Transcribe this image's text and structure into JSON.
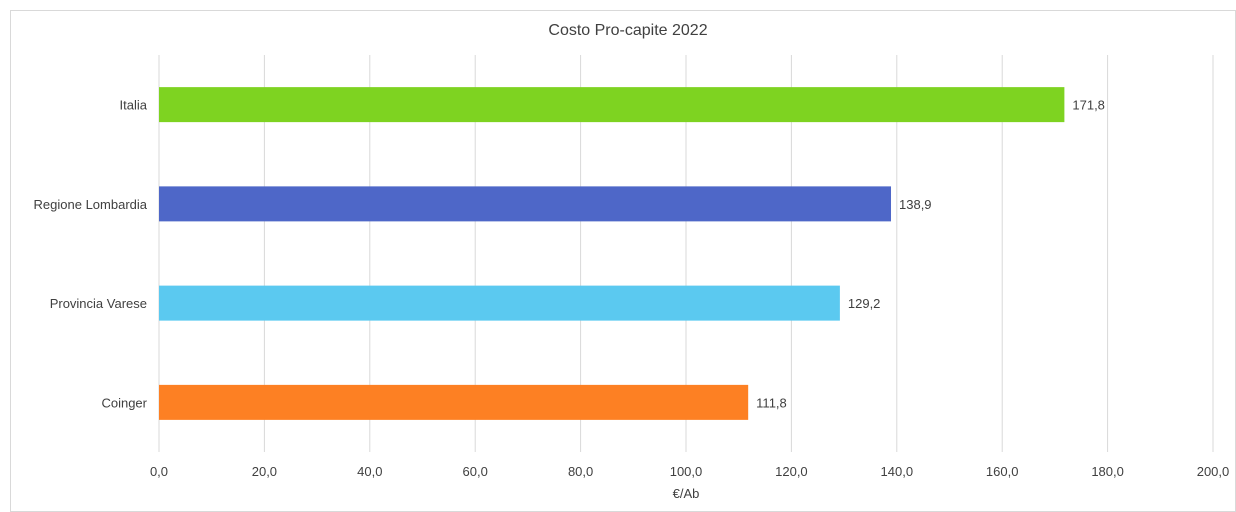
{
  "chart_data": {
    "type": "bar",
    "orientation": "horizontal",
    "title": "Costo Pro-capite 2022",
    "xlabel": "€/Ab",
    "ylabel": "",
    "xlim": [
      0,
      200
    ],
    "x_ticks": [
      "0,0",
      "20,0",
      "40,0",
      "60,0",
      "80,0",
      "100,0",
      "120,0",
      "140,0",
      "160,0",
      "180,0",
      "200,0"
    ],
    "grid": "vertical",
    "legend": "none",
    "categories": [
      "Italia",
      "Regione Lombardia",
      "Provincia Varese",
      "Coinger"
    ],
    "values": [
      171.8,
      138.9,
      129.2,
      111.8
    ],
    "value_labels": [
      "171,8",
      "138,9",
      "129,2",
      "111,8"
    ],
    "colors": [
      "#7ed321",
      "#4e67c8",
      "#5bc9f0",
      "#fd8023"
    ]
  }
}
